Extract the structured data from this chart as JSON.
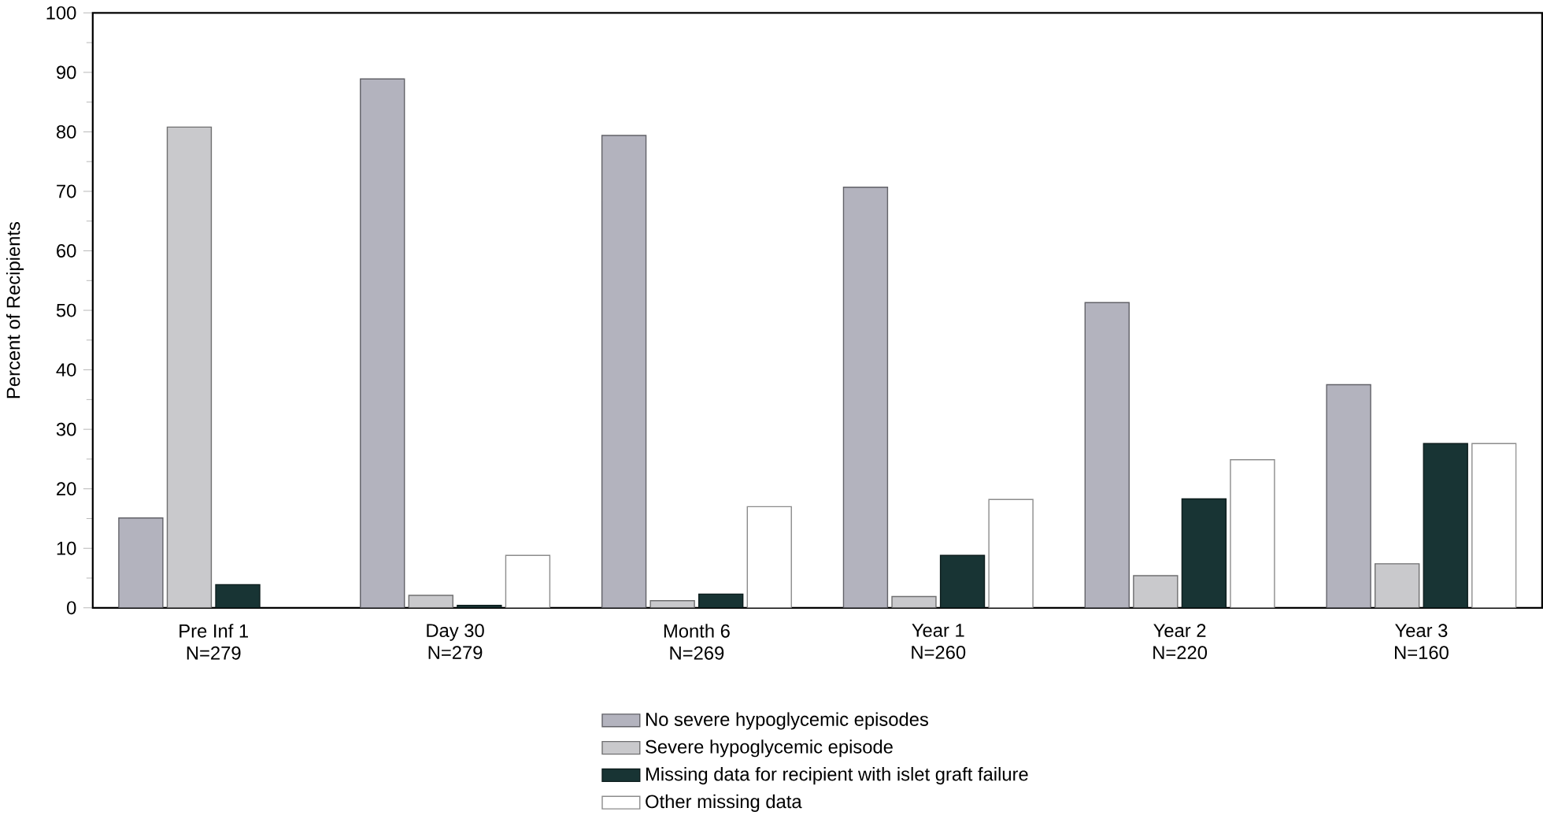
{
  "chart_data": {
    "type": "bar",
    "ylabel": "Percent of Recipients",
    "categories": [
      "Pre Inf 1 N=279",
      "Day 30 N=279",
      "Month 6 N=269",
      "Year 1 N=260",
      "Year 2 N=220",
      "Year 3 N=160"
    ],
    "series": [
      {
        "name": "No severe hypoglycemic episodes",
        "color": "#b3b3be",
        "values": [
          15.1,
          88.9,
          79.4,
          70.7,
          51.3,
          37.5
        ]
      },
      {
        "name": "Severe hypoglycemic episode",
        "color": "#c9c9cc",
        "values": [
          80.8,
          2.1,
          1.2,
          1.9,
          5.4,
          7.4
        ]
      },
      {
        "name": "Missing data for recipient with islet graft failure",
        "color": "#183434",
        "values": [
          3.9,
          0.4,
          2.3,
          8.8,
          18.3,
          27.6
        ]
      },
      {
        "name": "Other missing data",
        "color": "#ffffff",
        "values": [
          null,
          8.8,
          17.0,
          18.2,
          24.9,
          27.6
        ]
      }
    ],
    "ylim": [
      0,
      100
    ],
    "yticks": [
      0,
      10,
      20,
      30,
      40,
      50,
      60,
      70,
      80,
      90,
      100
    ],
    "grid": false,
    "legend": "bottom"
  }
}
